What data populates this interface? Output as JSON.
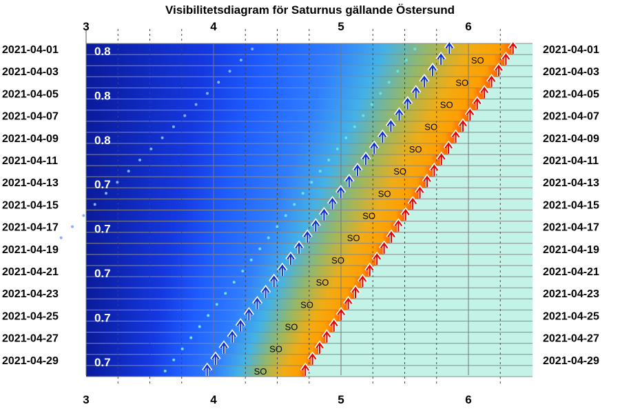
{
  "chart_data": {
    "type": "visibility-diagram",
    "title": "Visibilitetsdiagram för Saturnus gällande Östersund",
    "x_ticks": [
      "3",
      "4",
      "5",
      "6"
    ],
    "xlim": [
      3,
      6.5
    ],
    "dates_left": [
      "2021-04-01",
      "2021-04-03",
      "2021-04-05",
      "2021-04-07",
      "2021-04-09",
      "2021-04-11",
      "2021-04-13",
      "2021-04-15",
      "2021-04-17",
      "2021-04-19",
      "2021-04-21",
      "2021-04-23",
      "2021-04-25",
      "2021-04-27",
      "2021-04-29"
    ],
    "dates_right": [
      "2021-04-01",
      "2021-04-03",
      "2021-04-05",
      "2021-04-07",
      "2021-04-09",
      "2021-04-11",
      "2021-04-13",
      "2021-04-15",
      "2021-04-17",
      "2021-04-19",
      "2021-04-21",
      "2021-04-23",
      "2021-04-25",
      "2021-04-27",
      "2021-04-29"
    ],
    "magnitudes": [
      {
        "date": "2021-04-01",
        "label": "0.8"
      },
      {
        "date": "2021-04-05",
        "label": "0.8"
      },
      {
        "date": "2021-04-09",
        "label": "0.8"
      },
      {
        "date": "2021-04-13",
        "label": "0.7"
      },
      {
        "date": "2021-04-17",
        "label": "0.7"
      },
      {
        "date": "2021-04-21",
        "label": "0.7"
      },
      {
        "date": "2021-04-25",
        "label": "0.7"
      },
      {
        "date": "2021-04-29",
        "label": "0.7"
      }
    ],
    "so_label": "SO",
    "planet_rise": {
      "start": 5.85,
      "end": 3.95,
      "days": 30
    },
    "sunrise": {
      "start": 6.35,
      "end": 4.72,
      "days": 30
    },
    "dotted_curve_a": {
      "start": 4.52,
      "end": 3.02,
      "days": 18
    },
    "dotted_curve_b": {
      "start": 5.58,
      "end": 3.62,
      "days": 30
    },
    "colors": {
      "night": "#0a1a9a",
      "blue": "#1f5dff",
      "twilight": "#3fa3ff",
      "green": "#a8b45a",
      "orange": "#ffa400",
      "daylight": "#c3f2e6",
      "rise_arrow": "#0a2fc8",
      "sun_arrow": "#e00000"
    }
  }
}
